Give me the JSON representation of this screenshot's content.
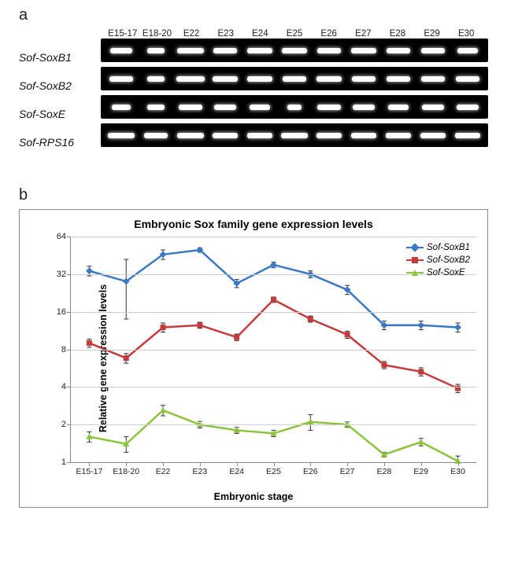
{
  "panel_a": {
    "label": "a",
    "lane_headers": [
      "E15-17",
      "E18-20",
      "E22",
      "E23",
      "E24",
      "E25",
      "E26",
      "E27",
      "E28",
      "E29",
      "E30"
    ],
    "rows": [
      {
        "gene": "Sof-SoxB1",
        "band_widths_pct": [
          62,
          48,
          76,
          70,
          74,
          74,
          70,
          72,
          70,
          68,
          58
        ]
      },
      {
        "gene": "Sof-SoxB2",
        "band_widths_pct": [
          66,
          52,
          80,
          72,
          72,
          70,
          74,
          70,
          70,
          70,
          70
        ]
      },
      {
        "gene": "Sof-SoxE",
        "band_widths_pct": [
          56,
          52,
          70,
          64,
          60,
          40,
          68,
          64,
          60,
          64,
          62
        ]
      },
      {
        "gene": "Sof-RPS16",
        "band_widths_pct": [
          76,
          70,
          78,
          74,
          74,
          78,
          74,
          74,
          74,
          74,
          74
        ]
      }
    ],
    "band_color": "#ffffff",
    "gel_background": "#000000"
  },
  "panel_b": {
    "label": "b",
    "chart": {
      "type": "line",
      "title": "Embryonic Sox family gene expression levels",
      "xlabel": "Embryonic stage",
      "ylabel": "Relative gene expression levels",
      "x_categories": [
        "E15-17",
        "E18-20",
        "E22",
        "E23",
        "E24",
        "E25",
        "E26",
        "E27",
        "E28",
        "E29",
        "E30"
      ],
      "y_scale": "log2",
      "ylim": [
        1,
        64
      ],
      "yticks": [
        1,
        2,
        4,
        8,
        16,
        32,
        64
      ],
      "grid_h": true,
      "grid_color": "#cfcfcf",
      "axis_color": "#888888",
      "background_color": "#ffffff",
      "line_width": 2.5,
      "marker_size": 7,
      "title_fontsize": 14,
      "label_fontsize": 12.5,
      "tick_fontsize": 11,
      "series": [
        {
          "name": "Sof-SoxB1",
          "color": "#3b78c4",
          "marker": "diamond",
          "values": [
            34,
            28,
            46,
            50,
            27,
            38,
            32,
            24,
            12.5,
            12.5,
            12
          ],
          "err": [
            3,
            14,
            4,
            2,
            2,
            2,
            2,
            2,
            1,
            1,
            1
          ]
        },
        {
          "name": "Sof-SoxB2",
          "color": "#c43b3b",
          "marker": "square",
          "values": [
            9,
            6.8,
            12,
            12.5,
            10,
            20,
            14,
            10.5,
            6,
            5.3,
            3.9
          ],
          "err": [
            0.7,
            0.6,
            1,
            0.7,
            0.6,
            1,
            0.8,
            0.7,
            0.4,
            0.4,
            0.3
          ]
        },
        {
          "name": "Sof-SoxE",
          "color": "#8bc43b",
          "marker": "triangle",
          "values": [
            1.6,
            1.4,
            2.6,
            2.0,
            1.8,
            1.7,
            2.1,
            2.0,
            1.15,
            1.45,
            1.02
          ],
          "err": [
            0.15,
            0.2,
            0.25,
            0.12,
            0.1,
            0.1,
            0.3,
            0.1,
            0.05,
            0.1,
            0.1
          ]
        }
      ],
      "legend_position": "top-right"
    }
  }
}
